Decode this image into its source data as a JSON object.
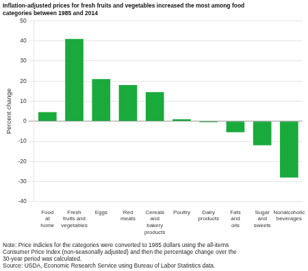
{
  "chart_data": {
    "type": "bar",
    "title": "Inflation-adjusted prices for fresh fruits and vegetables increased the most among food\ncategories between 1985 and 2014",
    "ylabel": "Percent change",
    "categories": [
      "Food\nat\nhome",
      "Fresh\nfruits and\nvegetables",
      "Eggs",
      "Red\nmeats",
      "Cereals\nand\nbakery\nproducts",
      "Poultry",
      "Dairy\nproducts",
      "Fats\nand\noils",
      "Sugar\nand\nsweets",
      "Nonalcoholic\nbeverages"
    ],
    "values": [
      4.5,
      41.0,
      21.0,
      18.0,
      14.5,
      1.0,
      -0.5,
      -5.5,
      -12.0,
      -28.0
    ],
    "color": "#1aaa3c",
    "ylim": [
      -40,
      50
    ],
    "yticks": [
      -40,
      -30,
      -20,
      -10,
      0,
      10,
      20,
      30,
      40,
      50
    ],
    "grid": true,
    "note": "Note: Price indicies for the categories were converted to 1985 dollars using the all-items\nConsumer Price Index (non-seasonally adjusted) and then the percentage change over the\n30-year period was calculated.\nSource: USDA, Economic Research Service using Bureau of Labor Statistics data."
  }
}
